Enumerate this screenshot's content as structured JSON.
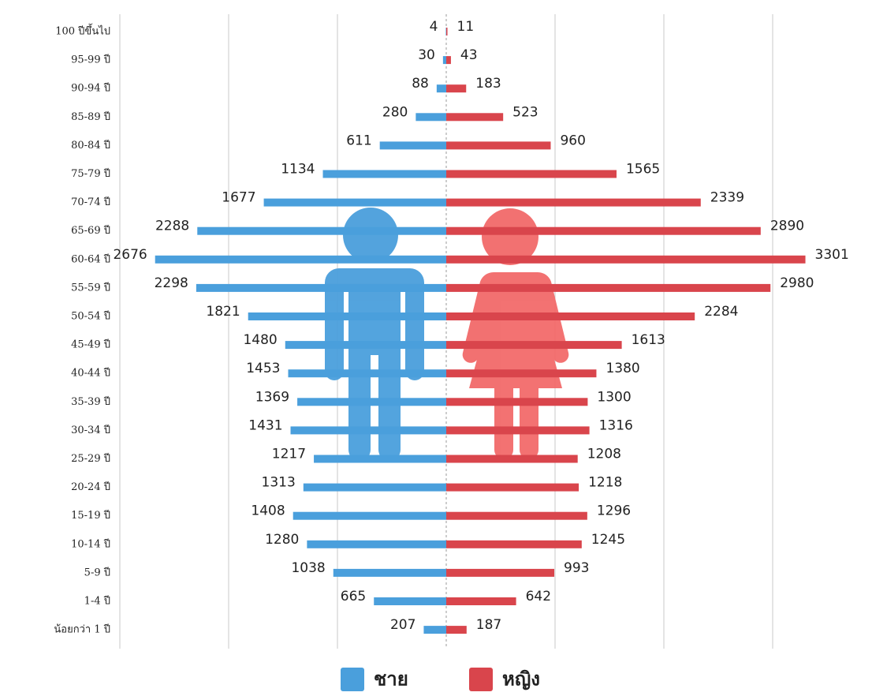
{
  "chart_data": {
    "type": "pyramid",
    "categories": [
      "100 ปีขึ้นไป",
      "95-99 ปี",
      "90-94 ปี",
      "85-89 ปี",
      "80-84 ปี",
      "75-79 ปี",
      "70-74 ปี",
      "65-69 ปี",
      "60-64 ปี",
      "55-59 ปี",
      "50-54 ปี",
      "45-49 ปี",
      "40-44 ปี",
      "35-39 ปี",
      "30-34 ปี",
      "25-29 ปี",
      "20-24 ปี",
      "15-19 ปี",
      "10-14 ปี",
      "5-9 ปี",
      "1-4 ปี",
      "น้อยกว่า 1 ปี"
    ],
    "series": [
      {
        "name": "ชาย",
        "color": "#4a9fdc",
        "values": [
          4,
          30,
          88,
          280,
          611,
          1134,
          1677,
          2288,
          2676,
          2298,
          1821,
          1480,
          1453,
          1369,
          1431,
          1217,
          1313,
          1408,
          1280,
          1038,
          665,
          207
        ]
      },
      {
        "name": "หญิง",
        "color": "#d9454c",
        "values": [
          11,
          43,
          183,
          523,
          960,
          1565,
          2339,
          2890,
          3301,
          2980,
          2284,
          1613,
          1380,
          1300,
          1316,
          1208,
          1218,
          1296,
          1245,
          993,
          642,
          187
        ]
      }
    ],
    "xlim": [
      -3000,
      3000
    ],
    "xticks": [
      -3000,
      -2000,
      -1000,
      0,
      1000,
      2000,
      3000
    ],
    "grid": true,
    "legend": "bottom"
  }
}
